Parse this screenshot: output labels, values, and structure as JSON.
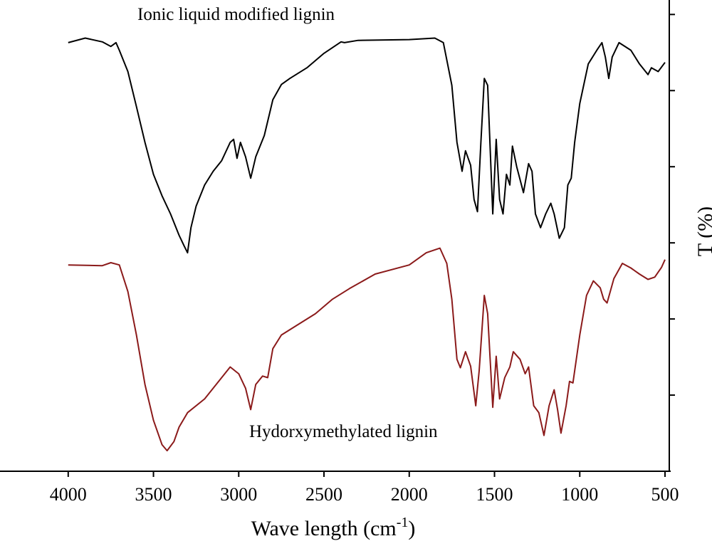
{
  "chart_data": {
    "type": "line",
    "x_label_parts": [
      "Wave length (cm",
      "-1",
      ")"
    ],
    "y_label": "T (%)",
    "xlim": [
      4400,
      475
    ],
    "ylim": [
      0,
      6.19
    ],
    "xticks": [
      4000,
      3500,
      3000,
      2500,
      2000,
      1500,
      1000,
      500
    ],
    "yticks": [
      1,
      2,
      3,
      4,
      5,
      6
    ],
    "series": [
      {
        "name": "Ionic liquid modified lignin",
        "color": "#000000",
        "x": [
          4000,
          3900,
          3800,
          3750,
          3720,
          3700,
          3650,
          3600,
          3550,
          3500,
          3450,
          3400,
          3350,
          3320,
          3300,
          3280,
          3250,
          3200,
          3150,
          3100,
          3050,
          3030,
          3010,
          2990,
          2960,
          2930,
          2900,
          2850,
          2800,
          2750,
          2700,
          2600,
          2500,
          2400,
          2380,
          2300,
          2000,
          1850,
          1800,
          1750,
          1720,
          1690,
          1670,
          1640,
          1620,
          1600,
          1580,
          1560,
          1540,
          1510,
          1490,
          1470,
          1450,
          1430,
          1410,
          1395,
          1370,
          1330,
          1300,
          1280,
          1260,
          1230,
          1200,
          1170,
          1150,
          1120,
          1090,
          1070,
          1050,
          1030,
          1000,
          950,
          900,
          870,
          850,
          830,
          810,
          770,
          700,
          650,
          600,
          580,
          540,
          500
        ],
        "values": [
          5.63,
          5.69,
          5.64,
          5.58,
          5.63,
          5.53,
          5.25,
          4.79,
          4.32,
          3.9,
          3.62,
          3.38,
          3.1,
          2.96,
          2.87,
          3.2,
          3.48,
          3.76,
          3.94,
          4.08,
          4.32,
          4.36,
          4.11,
          4.32,
          4.13,
          3.85,
          4.13,
          4.41,
          4.88,
          5.08,
          5.16,
          5.3,
          5.49,
          5.64,
          5.63,
          5.66,
          5.67,
          5.69,
          5.63,
          5.07,
          4.32,
          3.94,
          4.21,
          4.02,
          3.57,
          3.41,
          4.32,
          5.16,
          5.07,
          3.38,
          4.36,
          3.57,
          3.38,
          3.9,
          3.76,
          4.27,
          4.0,
          3.66,
          4.04,
          3.94,
          3.38,
          3.2,
          3.38,
          3.52,
          3.38,
          3.06,
          3.2,
          3.76,
          3.85,
          4.32,
          4.83,
          5.35,
          5.53,
          5.63,
          5.44,
          5.16,
          5.44,
          5.63,
          5.53,
          5.35,
          5.21,
          5.3,
          5.25,
          5.37
        ]
      },
      {
        "name": "Hydorxymethylated lignin",
        "color": "#8b1a1a",
        "x": [
          4000,
          3800,
          3750,
          3700,
          3650,
          3600,
          3550,
          3500,
          3450,
          3420,
          3380,
          3350,
          3300,
          3200,
          3100,
          3050,
          3000,
          2960,
          2930,
          2900,
          2860,
          2830,
          2800,
          2750,
          2650,
          2550,
          2450,
          2350,
          2200,
          2000,
          1900,
          1820,
          1780,
          1750,
          1720,
          1700,
          1670,
          1640,
          1610,
          1590,
          1560,
          1540,
          1510,
          1490,
          1470,
          1440,
          1410,
          1390,
          1350,
          1320,
          1300,
          1270,
          1240,
          1210,
          1180,
          1150,
          1130,
          1110,
          1080,
          1060,
          1040,
          1000,
          960,
          920,
          880,
          860,
          840,
          800,
          750,
          700,
          650,
          600,
          560,
          520,
          500
        ],
        "values": [
          2.71,
          2.7,
          2.74,
          2.71,
          2.36,
          1.79,
          1.14,
          0.67,
          0.35,
          0.27,
          0.39,
          0.58,
          0.77,
          0.95,
          1.23,
          1.37,
          1.28,
          1.09,
          0.81,
          1.14,
          1.25,
          1.23,
          1.61,
          1.79,
          1.93,
          2.07,
          2.26,
          2.4,
          2.59,
          2.71,
          2.87,
          2.93,
          2.73,
          2.26,
          1.47,
          1.36,
          1.57,
          1.38,
          0.86,
          1.32,
          2.31,
          2.07,
          0.84,
          1.51,
          0.95,
          1.23,
          1.37,
          1.57,
          1.47,
          1.28,
          1.37,
          0.86,
          0.77,
          0.47,
          0.86,
          1.07,
          0.81,
          0.5,
          0.86,
          1.18,
          1.16,
          1.79,
          2.31,
          2.5,
          2.41,
          2.26,
          2.21,
          2.53,
          2.73,
          2.67,
          2.59,
          2.52,
          2.55,
          2.68,
          2.78
        ]
      }
    ]
  }
}
